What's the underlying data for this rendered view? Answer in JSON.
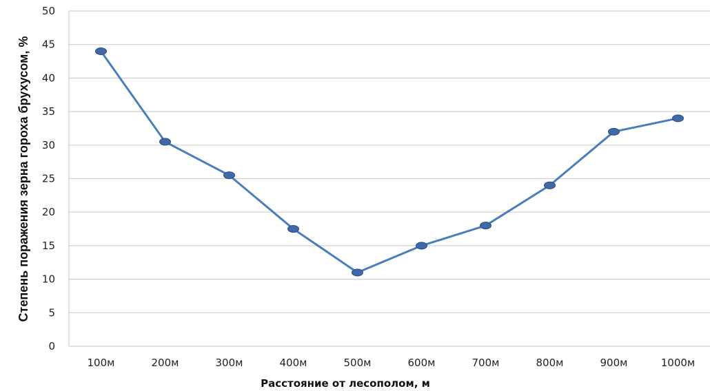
{
  "chart_data": {
    "type": "line",
    "categories": [
      "100м",
      "200м",
      "300м",
      "400м",
      "500м",
      "600м",
      "700м",
      "800м",
      "900м",
      "1000м"
    ],
    "series": [
      {
        "values": [
          44,
          30.5,
          25.5,
          17.5,
          11,
          15,
          18,
          24,
          32,
          34
        ]
      }
    ],
    "xlabel": "Расстояние от лесополом, м",
    "ylabel": "Степень поражения зерна гороха брухусом, %",
    "ylim": [
      0,
      50
    ],
    "yticks": [
      "0",
      "5",
      "10",
      "15",
      "20",
      "25",
      "30",
      "35",
      "40",
      "45",
      "50"
    ],
    "grid": true,
    "line_color": "#4a7ebb",
    "marker_color": "#3f6aa6",
    "grid_color": "#d0d0d0"
  }
}
